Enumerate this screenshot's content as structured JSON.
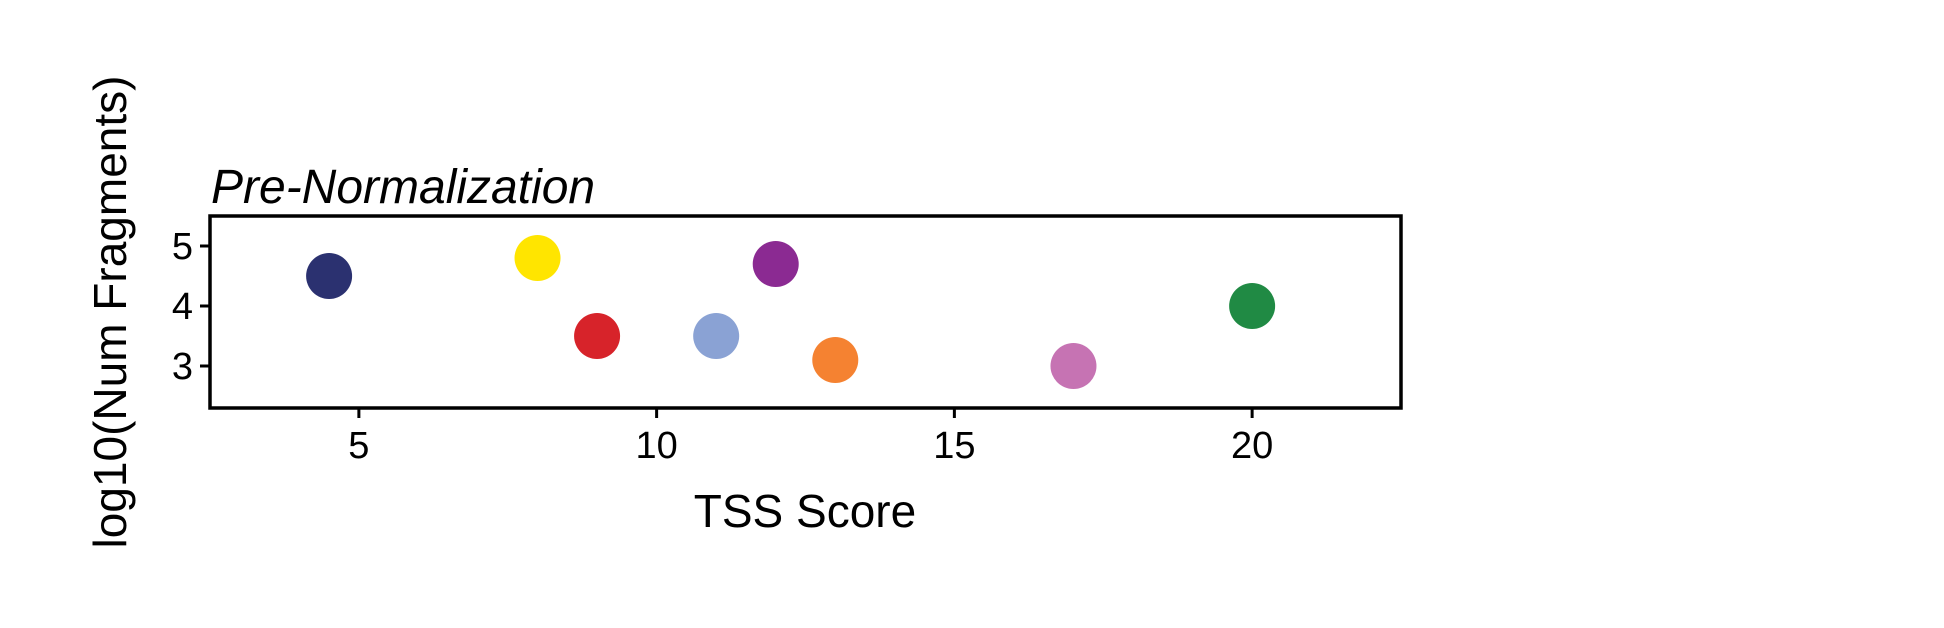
{
  "chart_data": {
    "type": "scatter",
    "title": "Pre-Normalization",
    "xlabel": "TSS Score",
    "ylabel": "log10(Num Fragments)",
    "xlim": [
      2.5,
      22.5
    ],
    "ylim": [
      2.3,
      5.5
    ],
    "xticks": [
      5,
      10,
      15,
      20
    ],
    "yticks": [
      3,
      4,
      5
    ],
    "grid": false,
    "legend": "none",
    "points": [
      {
        "x": 4.5,
        "y": 4.5,
        "color": "#2b3170"
      },
      {
        "x": 8.0,
        "y": 4.8,
        "color": "#ffe500"
      },
      {
        "x": 9.0,
        "y": 3.5,
        "color": "#d7232a"
      },
      {
        "x": 11.0,
        "y": 3.5,
        "color": "#8aa2d4"
      },
      {
        "x": 12.0,
        "y": 4.7,
        "color": "#8b2a92"
      },
      {
        "x": 13.0,
        "y": 3.1,
        "color": "#f58231"
      },
      {
        "x": 17.0,
        "y": 3.0,
        "color": "#c673b3"
      },
      {
        "x": 20.0,
        "y": 4.0,
        "color": "#208a44"
      }
    ]
  }
}
